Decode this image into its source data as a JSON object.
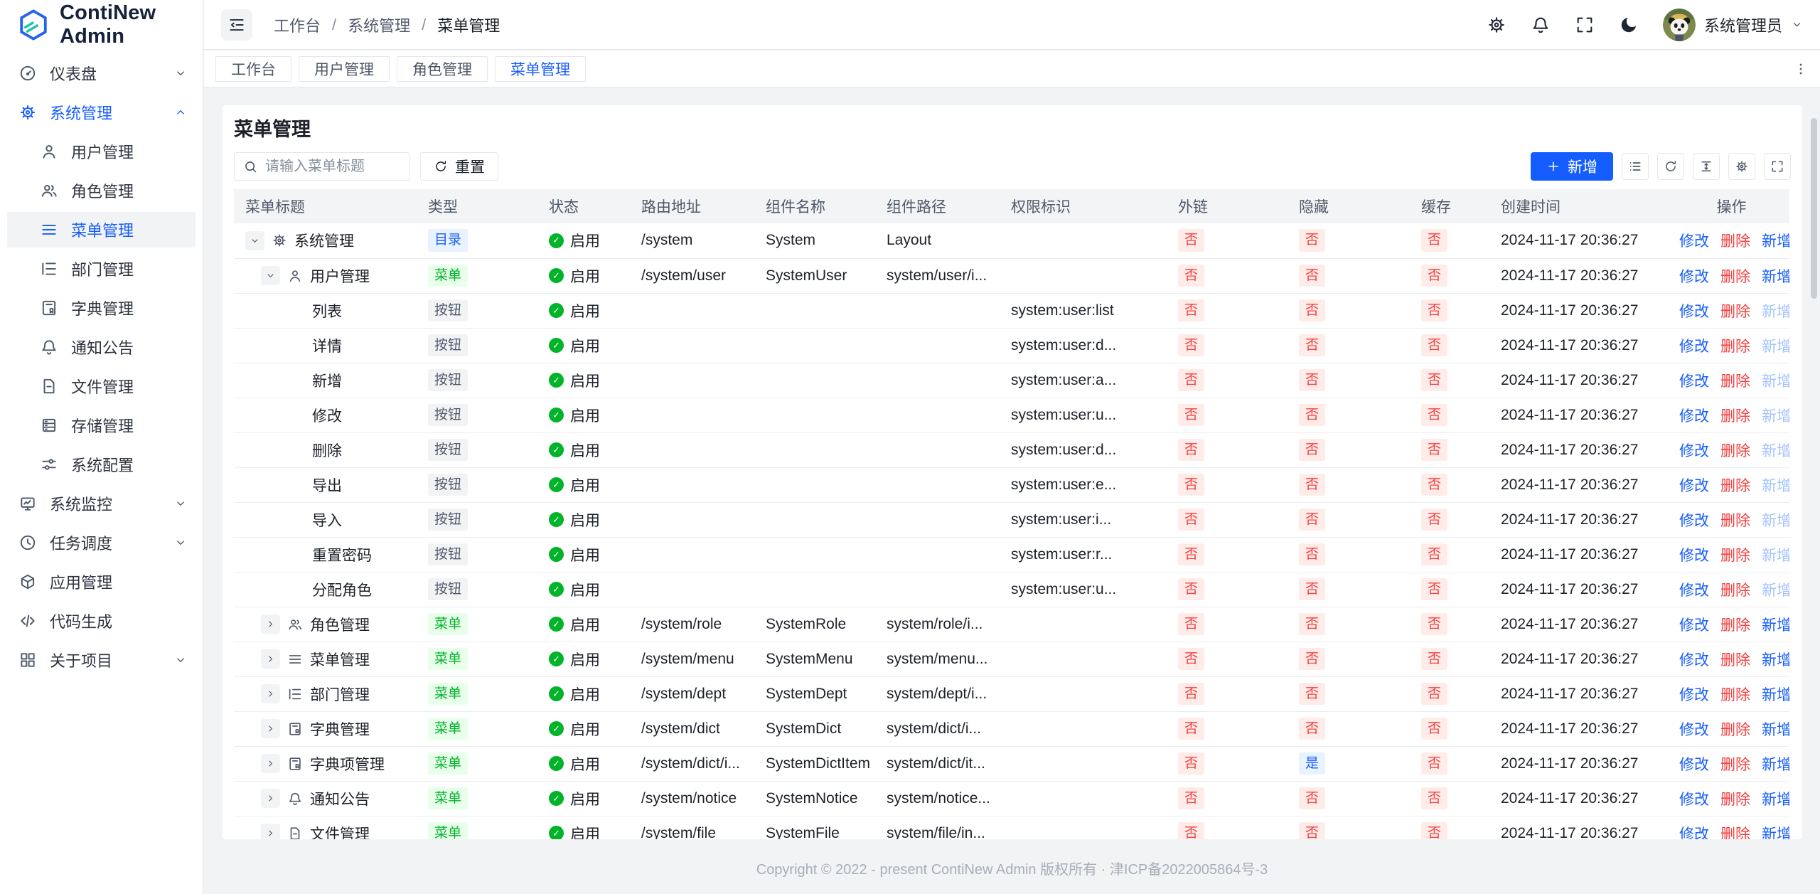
{
  "colors": {
    "primary": "#165dff",
    "success": "#00b42a",
    "danger": "#f53f3f"
  },
  "app": {
    "name": "ContiNew Admin"
  },
  "topbar": {
    "breadcrumb": [
      "工作台",
      "系统管理",
      "菜单管理"
    ],
    "user": {
      "name": "系统管理员"
    }
  },
  "tabs": [
    {
      "label": "工作台",
      "active": false
    },
    {
      "label": "用户管理",
      "active": false
    },
    {
      "label": "角色管理",
      "active": false
    },
    {
      "label": "菜单管理",
      "active": true
    }
  ],
  "sidebar": {
    "items": [
      {
        "label": "仪表盘",
        "icon": "dashboard",
        "level": 0,
        "chevron": "down"
      },
      {
        "label": "系统管理",
        "icon": "gear",
        "level": 0,
        "chevron": "up",
        "open": true
      },
      {
        "label": "用户管理",
        "icon": "user",
        "level": 1
      },
      {
        "label": "角色管理",
        "icon": "users",
        "level": 1
      },
      {
        "label": "菜单管理",
        "icon": "menu",
        "level": 1,
        "active": true
      },
      {
        "label": "部门管理",
        "icon": "dept-tree",
        "level": 1
      },
      {
        "label": "字典管理",
        "icon": "dict-book",
        "level": 1
      },
      {
        "label": "通知公告",
        "icon": "bell",
        "level": 1
      },
      {
        "label": "文件管理",
        "icon": "file",
        "level": 1
      },
      {
        "label": "存储管理",
        "icon": "storage",
        "level": 1
      },
      {
        "label": "系统配置",
        "icon": "sliders",
        "level": 1
      },
      {
        "label": "系统监控",
        "icon": "monitor",
        "level": 0,
        "chevron": "down"
      },
      {
        "label": "任务调度",
        "icon": "clock",
        "level": 0,
        "chevron": "down"
      },
      {
        "label": "应用管理",
        "icon": "cube",
        "level": 0
      },
      {
        "label": "代码生成",
        "icon": "code",
        "level": 0
      },
      {
        "label": "关于项目",
        "icon": "grid",
        "level": 0,
        "chevron": "down"
      }
    ]
  },
  "main": {
    "title": "菜单管理",
    "search_placeholder": "请输入菜单标题",
    "reset_label": "重置",
    "add_label": "新增"
  },
  "table": {
    "columns": [
      "菜单标题",
      "类型",
      "状态",
      "路由地址",
      "组件名称",
      "组件路径",
      "权限标识",
      "外链",
      "隐藏",
      "缓存",
      "创建时间",
      "操作"
    ],
    "ops": {
      "edit": "修改",
      "delete": "删除",
      "add": "新增"
    },
    "status_enabled": "启用",
    "rows": [
      {
        "title": "系统管理",
        "level": 0,
        "expand": "down",
        "icon": "gear",
        "type": "目录",
        "status": "启用",
        "route": "/system",
        "component": "System",
        "path": "Layout",
        "perm": "",
        "external": "否",
        "hidden": "否",
        "cache": "否",
        "created": "2024-11-17 20:36:27",
        "add_disabled": false
      },
      {
        "title": "用户管理",
        "level": 1,
        "expand": "down",
        "icon": "user",
        "type": "菜单",
        "status": "启用",
        "route": "/system/user",
        "component": "SystemUser",
        "path": "system/user/i...",
        "perm": "",
        "external": "否",
        "hidden": "否",
        "cache": "否",
        "created": "2024-11-17 20:36:27",
        "add_disabled": false
      },
      {
        "title": "列表",
        "level": 2,
        "expand": null,
        "icon": null,
        "type": "按钮",
        "status": "启用",
        "route": "",
        "component": "",
        "path": "",
        "perm": "system:user:list",
        "external": "否",
        "hidden": "否",
        "cache": "否",
        "created": "2024-11-17 20:36:27",
        "add_disabled": true
      },
      {
        "title": "详情",
        "level": 2,
        "expand": null,
        "icon": null,
        "type": "按钮",
        "status": "启用",
        "route": "",
        "component": "",
        "path": "",
        "perm": "system:user:d...",
        "external": "否",
        "hidden": "否",
        "cache": "否",
        "created": "2024-11-17 20:36:27",
        "add_disabled": true
      },
      {
        "title": "新增",
        "level": 2,
        "expand": null,
        "icon": null,
        "type": "按钮",
        "status": "启用",
        "route": "",
        "component": "",
        "path": "",
        "perm": "system:user:a...",
        "external": "否",
        "hidden": "否",
        "cache": "否",
        "created": "2024-11-17 20:36:27",
        "add_disabled": true
      },
      {
        "title": "修改",
        "level": 2,
        "expand": null,
        "icon": null,
        "type": "按钮",
        "status": "启用",
        "route": "",
        "component": "",
        "path": "",
        "perm": "system:user:u...",
        "external": "否",
        "hidden": "否",
        "cache": "否",
        "created": "2024-11-17 20:36:27",
        "add_disabled": true
      },
      {
        "title": "删除",
        "level": 2,
        "expand": null,
        "icon": null,
        "type": "按钮",
        "status": "启用",
        "route": "",
        "component": "",
        "path": "",
        "perm": "system:user:d...",
        "external": "否",
        "hidden": "否",
        "cache": "否",
        "created": "2024-11-17 20:36:27",
        "add_disabled": true
      },
      {
        "title": "导出",
        "level": 2,
        "expand": null,
        "icon": null,
        "type": "按钮",
        "status": "启用",
        "route": "",
        "component": "",
        "path": "",
        "perm": "system:user:e...",
        "external": "否",
        "hidden": "否",
        "cache": "否",
        "created": "2024-11-17 20:36:27",
        "add_disabled": true
      },
      {
        "title": "导入",
        "level": 2,
        "expand": null,
        "icon": null,
        "type": "按钮",
        "status": "启用",
        "route": "",
        "component": "",
        "path": "",
        "perm": "system:user:i...",
        "external": "否",
        "hidden": "否",
        "cache": "否",
        "created": "2024-11-17 20:36:27",
        "add_disabled": true
      },
      {
        "title": "重置密码",
        "level": 2,
        "expand": null,
        "icon": null,
        "type": "按钮",
        "status": "启用",
        "route": "",
        "component": "",
        "path": "",
        "perm": "system:user:r...",
        "external": "否",
        "hidden": "否",
        "cache": "否",
        "created": "2024-11-17 20:36:27",
        "add_disabled": true
      },
      {
        "title": "分配角色",
        "level": 2,
        "expand": null,
        "icon": null,
        "type": "按钮",
        "status": "启用",
        "route": "",
        "component": "",
        "path": "",
        "perm": "system:user:u...",
        "external": "否",
        "hidden": "否",
        "cache": "否",
        "created": "2024-11-17 20:36:27",
        "add_disabled": true
      },
      {
        "title": "角色管理",
        "level": 1,
        "expand": "right",
        "icon": "users",
        "type": "菜单",
        "status": "启用",
        "route": "/system/role",
        "component": "SystemRole",
        "path": "system/role/i...",
        "perm": "",
        "external": "否",
        "hidden": "否",
        "cache": "否",
        "created": "2024-11-17 20:36:27",
        "add_disabled": false
      },
      {
        "title": "菜单管理",
        "level": 1,
        "expand": "right",
        "icon": "menu",
        "type": "菜单",
        "status": "启用",
        "route": "/system/menu",
        "component": "SystemMenu",
        "path": "system/menu...",
        "perm": "",
        "external": "否",
        "hidden": "否",
        "cache": "否",
        "created": "2024-11-17 20:36:27",
        "add_disabled": false
      },
      {
        "title": "部门管理",
        "level": 1,
        "expand": "right",
        "icon": "dept-tree",
        "type": "菜单",
        "status": "启用",
        "route": "/system/dept",
        "component": "SystemDept",
        "path": "system/dept/i...",
        "perm": "",
        "external": "否",
        "hidden": "否",
        "cache": "否",
        "created": "2024-11-17 20:36:27",
        "add_disabled": false
      },
      {
        "title": "字典管理",
        "level": 1,
        "expand": "right",
        "icon": "dict-book",
        "type": "菜单",
        "status": "启用",
        "route": "/system/dict",
        "component": "SystemDict",
        "path": "system/dict/i...",
        "perm": "",
        "external": "否",
        "hidden": "否",
        "cache": "否",
        "created": "2024-11-17 20:36:27",
        "add_disabled": false
      },
      {
        "title": "字典项管理",
        "level": 1,
        "expand": "right",
        "icon": "dict-book",
        "type": "菜单",
        "status": "启用",
        "route": "/system/dict/i...",
        "component": "SystemDictItem",
        "path": "system/dict/it...",
        "perm": "",
        "external": "否",
        "hidden": "是",
        "cache": "否",
        "created": "2024-11-17 20:36:27",
        "add_disabled": false
      },
      {
        "title": "通知公告",
        "level": 1,
        "expand": "right",
        "icon": "bell",
        "type": "菜单",
        "status": "启用",
        "route": "/system/notice",
        "component": "SystemNotice",
        "path": "system/notice...",
        "perm": "",
        "external": "否",
        "hidden": "否",
        "cache": "否",
        "created": "2024-11-17 20:36:27",
        "add_disabled": false
      },
      {
        "title": "文件管理",
        "level": 1,
        "expand": "right",
        "icon": "file",
        "type": "菜单",
        "status": "启用",
        "route": "/system/file",
        "component": "SystemFile",
        "path": "system/file/in...",
        "perm": "",
        "external": "否",
        "hidden": "否",
        "cache": "否",
        "created": "2024-11-17 20:36:27",
        "add_disabled": false
      }
    ]
  },
  "footer": {
    "copyright": "Copyright © 2022 - present ContiNew Admin 版权所有 · 津ICP备2022005864号-3"
  }
}
